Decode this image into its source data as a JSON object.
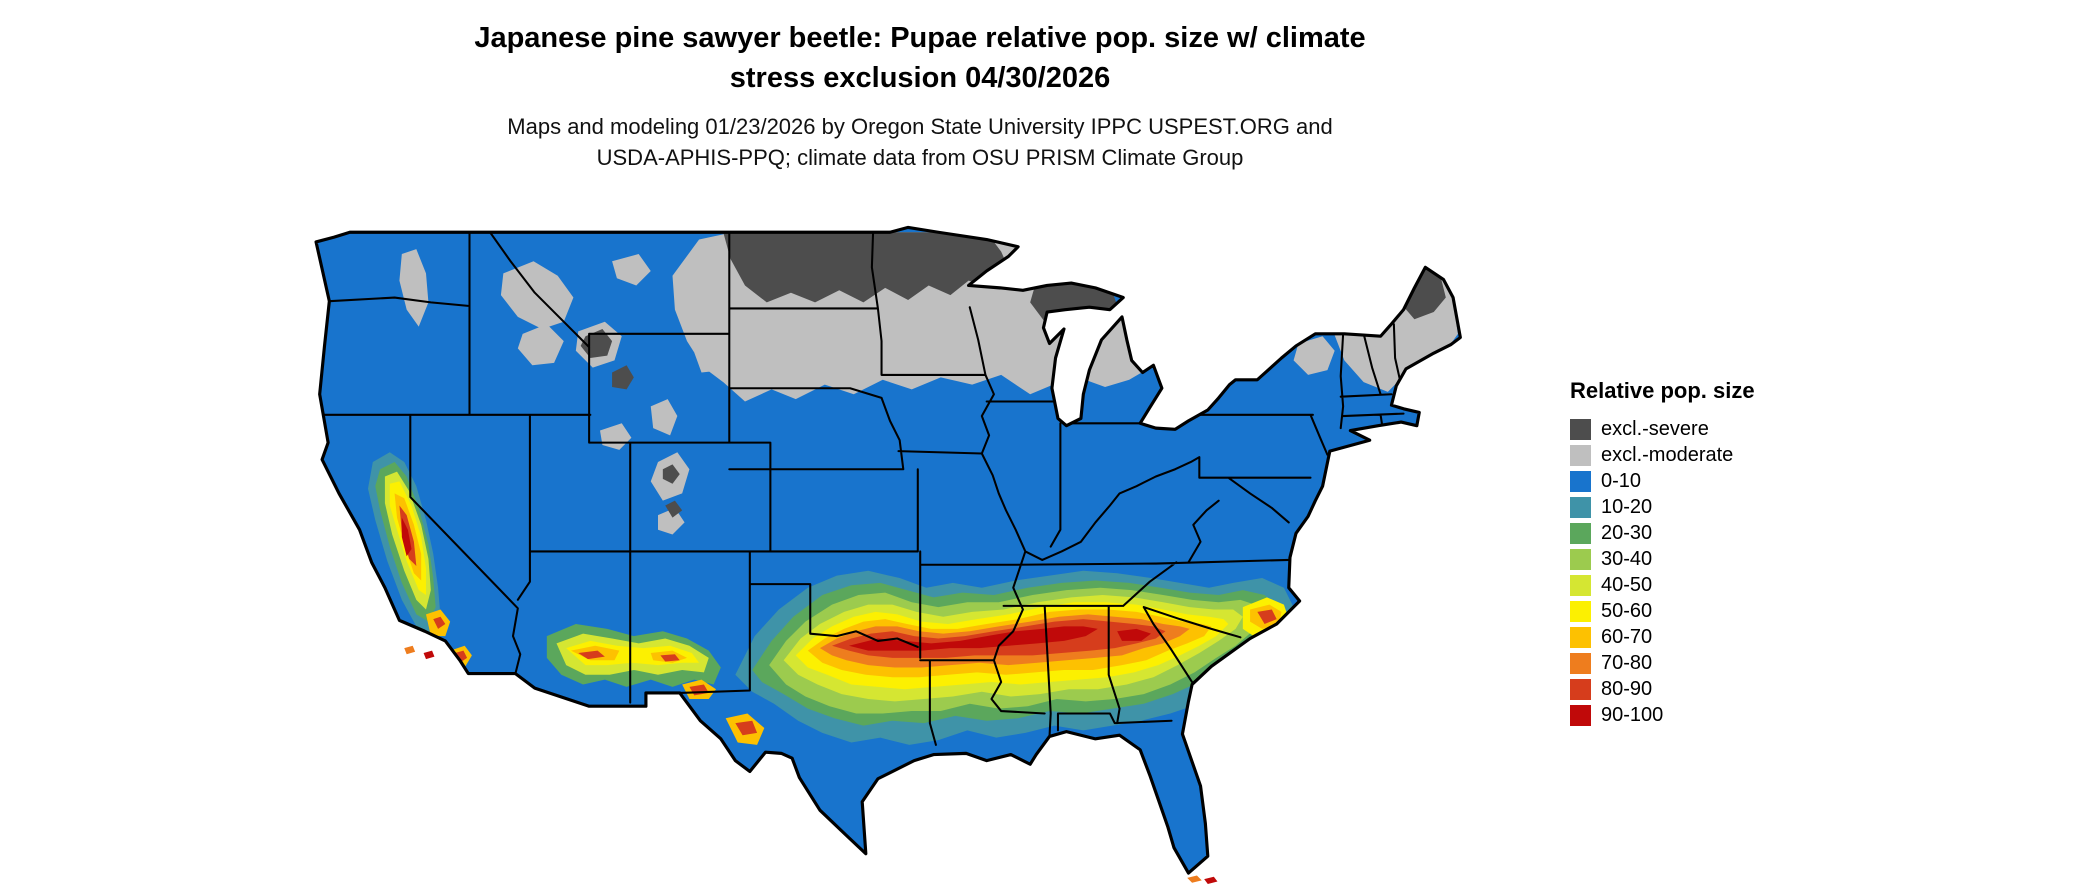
{
  "title": {
    "line1": "Japanese pine sawyer beetle: Pupae relative pop. size w/ climate",
    "line2": "stress exclusion 04/30/2026"
  },
  "subtitle": {
    "line1": "Maps and modeling 01/23/2026 by Oregon State University IPPC USPEST.ORG and",
    "line2": "USDA-APHIS-PPQ; climate data from OSU PRISM Climate Group"
  },
  "legend": {
    "title": "Relative pop. size",
    "items": [
      {
        "label": "excl.-severe",
        "color": "#4d4d4d"
      },
      {
        "label": "excl.-moderate",
        "color": "#bfbfbf"
      },
      {
        "label": "0-10",
        "color": "#1874cd"
      },
      {
        "label": "10-20",
        "color": "#3f93a8"
      },
      {
        "label": "20-30",
        "color": "#5ba75c"
      },
      {
        "label": "30-40",
        "color": "#9ccb4e"
      },
      {
        "label": "40-50",
        "color": "#d5e632"
      },
      {
        "label": "50-60",
        "color": "#fcf001"
      },
      {
        "label": "60-70",
        "color": "#fdc101"
      },
      {
        "label": "70-80",
        "color": "#ee7d1e"
      },
      {
        "label": "80-90",
        "color": "#d63d1c"
      },
      {
        "label": "90-100",
        "color": "#c00909"
      }
    ]
  },
  "map": {
    "region": "Continental United States",
    "border_color": "#000000",
    "background_color": "#ffffff"
  }
}
